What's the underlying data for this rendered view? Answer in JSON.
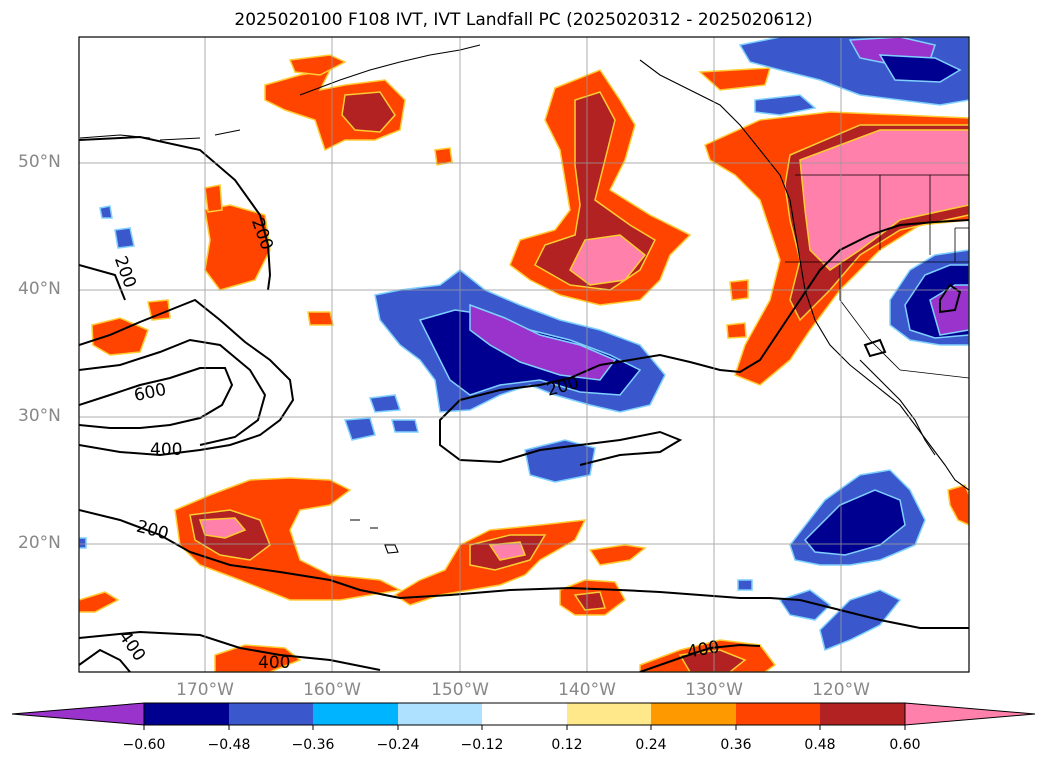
{
  "title": "2025020100 F108 IVT, IVT Landfall PC (2025020312 - 2025020612)",
  "map": {
    "lat_ticks": [
      "50°N",
      "40°N",
      "30°N",
      "20°N"
    ],
    "lon_ticks": [
      "170°W",
      "160°W",
      "150°W",
      "140°W",
      "130°W",
      "120°W"
    ],
    "contour_labels": [
      "200",
      "200",
      "600",
      "400",
      "200",
      "200",
      "400",
      "400",
      "400"
    ]
  },
  "colorbar": {
    "ticks": [
      "−0.60",
      "−0.48",
      "−0.36",
      "−0.24",
      "−0.12",
      "0.12",
      "0.24",
      "0.36",
      "0.48",
      "0.60"
    ],
    "colors": [
      "#9933cc",
      "#000090",
      "#3a58cc",
      "#00b4ff",
      "#aee0ff",
      "#ffffff",
      "#ffe88a",
      "#ff9900",
      "#ff4400",
      "#b22222",
      "#ff80aa"
    ]
  }
}
